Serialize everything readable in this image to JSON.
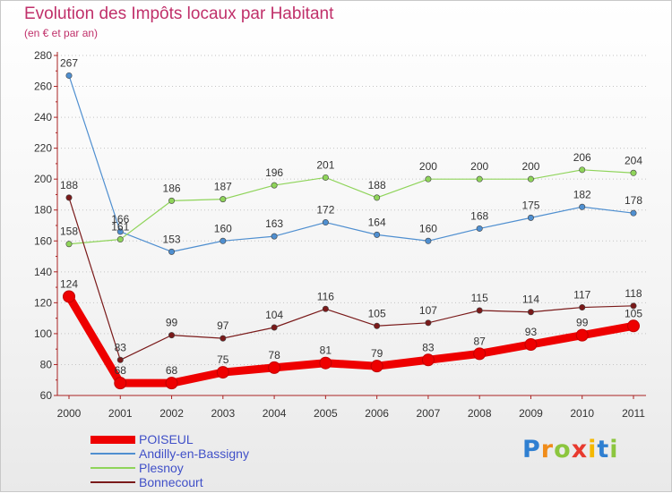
{
  "title": "Evolution des Impôts locaux par Habitant",
  "subtitle": "(en € et par an)",
  "logo": {
    "text": "Proxiti",
    "letters": [
      {
        "ch": "P",
        "color": "#2f7fd1"
      },
      {
        "ch": "r",
        "color": "#f08c1a"
      },
      {
        "ch": "o",
        "color": "#8cc63e"
      },
      {
        "ch": "x",
        "color": "#e83a2f"
      },
      {
        "ch": "i",
        "color": "#f5b800"
      },
      {
        "ch": "t",
        "color": "#2f7fd1"
      },
      {
        "ch": "i",
        "color": "#8cc63e"
      }
    ]
  },
  "chart_data": {
    "type": "line",
    "title": "Evolution des Impôts locaux par Habitant",
    "subtitle": "(en € et par an)",
    "xlabel": "",
    "ylabel": "",
    "categories": [
      "2000",
      "2001",
      "2002",
      "2003",
      "2004",
      "2005",
      "2006",
      "2007",
      "2008",
      "2009",
      "2010",
      "2011"
    ],
    "ylim": [
      60,
      280
    ],
    "yticks": [
      60,
      80,
      100,
      120,
      140,
      160,
      180,
      200,
      220,
      240,
      260,
      280
    ],
    "grid": "horizontal dotted",
    "legend_position": "bottom-left",
    "series": [
      {
        "name": "POISEUL",
        "color": "#ee0000",
        "emphasis": "thick",
        "values": [
          124,
          68,
          68,
          75,
          78,
          81,
          79,
          83,
          87,
          93,
          99,
          105
        ]
      },
      {
        "name": "Andilly-en-Bassigny",
        "color": "#4f8fd0",
        "emphasis": "thin",
        "values": [
          267,
          166,
          153,
          160,
          163,
          172,
          164,
          160,
          168,
          175,
          182,
          178
        ]
      },
      {
        "name": "Plesnoy",
        "color": "#8fd45a",
        "emphasis": "thin",
        "values": [
          158,
          161,
          186,
          187,
          196,
          201,
          188,
          200,
          200,
          200,
          206,
          204
        ]
      },
      {
        "name": "Bonnecourt",
        "color": "#7a1a1a",
        "emphasis": "thin",
        "values": [
          188,
          83,
          99,
          97,
          104,
          116,
          105,
          107,
          115,
          114,
          117,
          118
        ]
      }
    ]
  }
}
